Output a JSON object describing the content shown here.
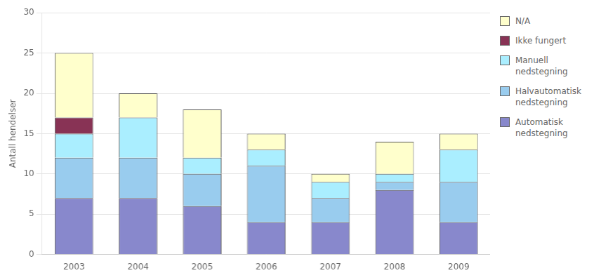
{
  "chart_data": {
    "type": "bar",
    "stacked": true,
    "ylabel": "Antall hendelser",
    "categories": [
      "2003",
      "2004",
      "2005",
      "2006",
      "2007",
      "2008",
      "2009"
    ],
    "series": [
      {
        "name": "Automatisk\nnedstegning",
        "color": "#8888cc",
        "values": [
          7,
          7,
          6,
          4,
          4,
          8,
          4
        ]
      },
      {
        "name": "Halvautomatisk\nnedstegning",
        "color": "#99ccee",
        "values": [
          5,
          5,
          4,
          7,
          3,
          1,
          5
        ]
      },
      {
        "name": "Manuell\nnedstegning",
        "color": "#aaeeff",
        "values": [
          3,
          5,
          2,
          2,
          2,
          1,
          4
        ]
      },
      {
        "name": "Ikke fungert",
        "color": "#883355",
        "values": [
          2,
          0,
          0,
          0,
          0,
          0,
          0
        ]
      },
      {
        "name": "N/A",
        "color": "#ffffcc",
        "values": [
          8,
          3,
          6,
          2,
          1,
          4,
          2
        ]
      }
    ],
    "ylim": [
      0,
      30
    ],
    "yticks": [
      0,
      5,
      10,
      15,
      20,
      25,
      30
    ],
    "grid": true,
    "legend": "right"
  }
}
